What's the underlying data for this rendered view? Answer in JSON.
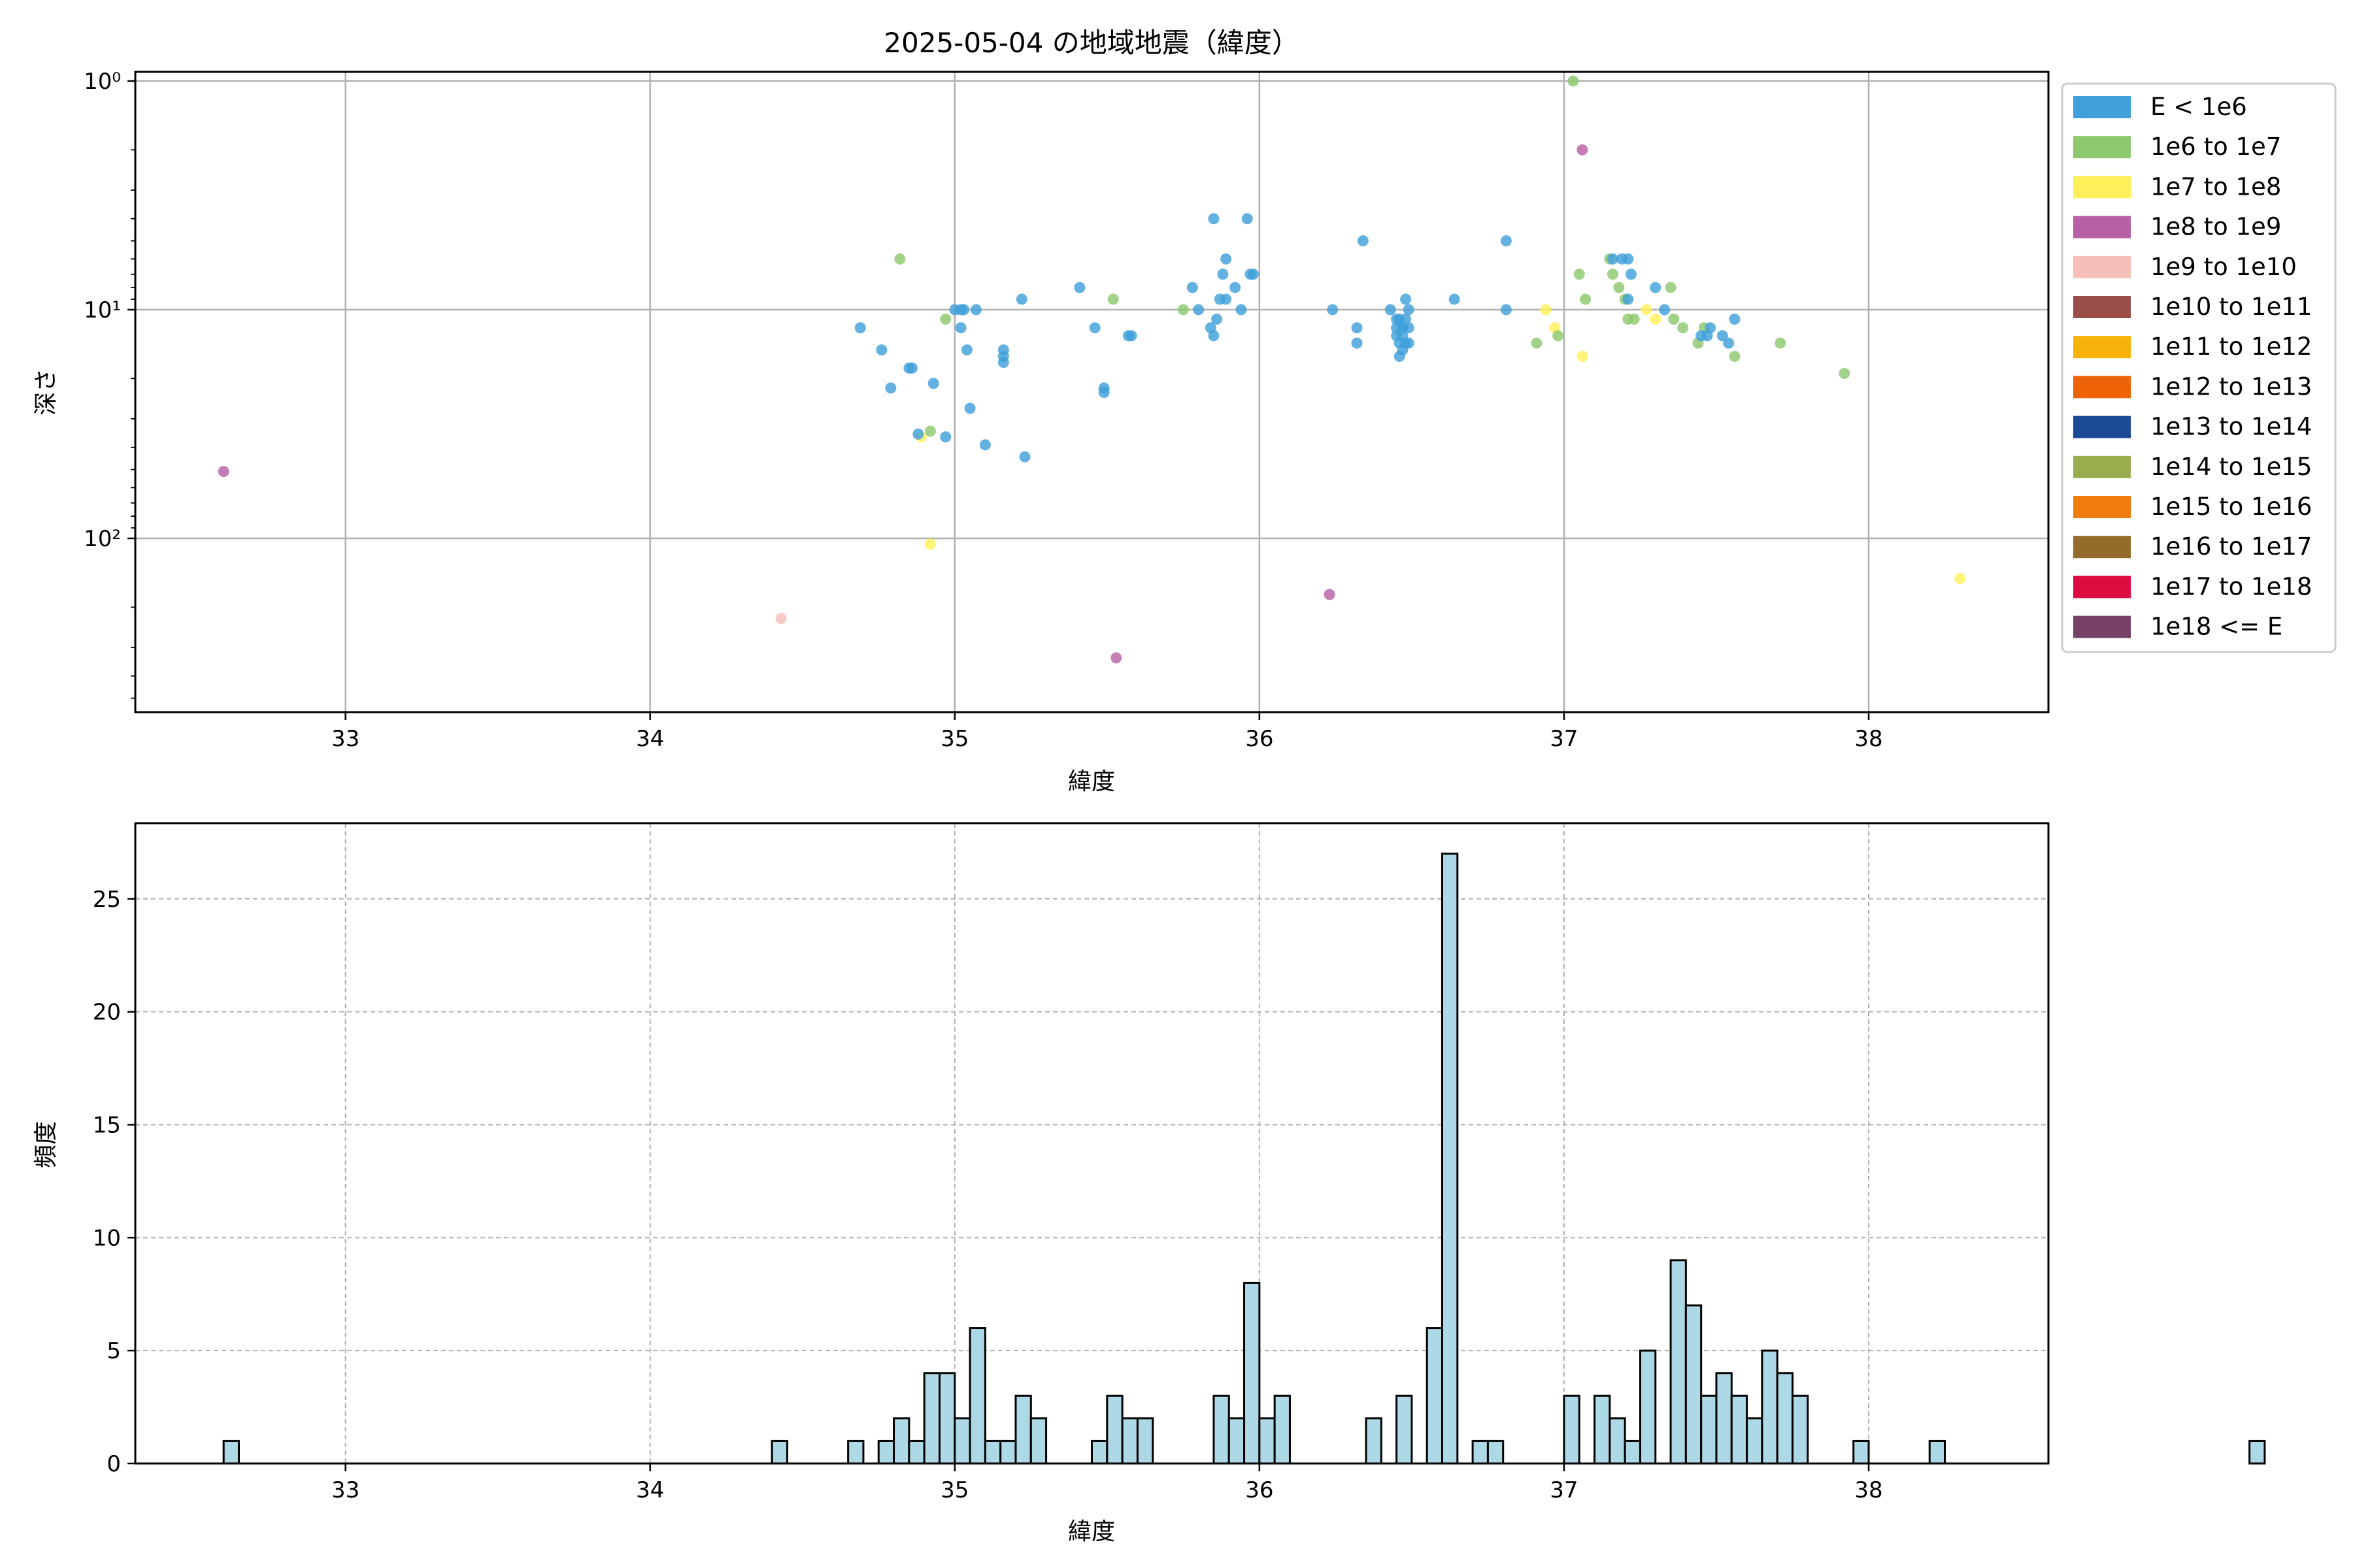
{
  "chart_data": [
    {
      "type": "scatter",
      "title": "2025-05-04 の地域地震（緯度）",
      "xlabel": "緯度",
      "ylabel": "深さ",
      "xlim": [
        32.31,
        38.59
      ],
      "ylim_log": [
        -0.04,
        2.76
      ],
      "yscale": "log (inverted)",
      "x_ticks": [
        "33",
        "34",
        "35",
        "36",
        "37",
        "38"
      ],
      "y_ticks": [
        {
          "value": 1,
          "label": "10⁰"
        },
        {
          "value": 10,
          "label": "10¹"
        },
        {
          "value": 100,
          "label": "10²"
        }
      ],
      "grid": true,
      "legend_position": "outside right",
      "legend": [
        {
          "label": "E < 1e6",
          "color": "#3fa0db"
        },
        {
          "label": "1e6 to 1e7",
          "color": "#8dc86e"
        },
        {
          "label": "1e7 to 1e8",
          "color": "#fff05a"
        },
        {
          "label": "1e8 to 1e9",
          "color": "#b860a6"
        },
        {
          "label": "1e9 to 1e10",
          "color": "#f6c0b8"
        },
        {
          "label": "1e10 to 1e11",
          "color": "#9a4e4c"
        },
        {
          "label": "1e11 to 1e12",
          "color": "#f7b20a"
        },
        {
          "label": "1e12 to 1e13",
          "color": "#ee6208"
        },
        {
          "label": "1e13 to 1e14",
          "color": "#1b4a96"
        },
        {
          "label": "1e14 to 1e15",
          "color": "#9aad4e"
        },
        {
          "label": "1e15 to 1e16",
          "color": "#f07c0e"
        },
        {
          "label": "1e16 to 1e17",
          "color": "#936b2a"
        },
        {
          "label": "1e17 to 1e18",
          "color": "#dc0b40"
        },
        {
          "label": "1e18 <= E",
          "color": "#774068"
        }
      ],
      "points": [
        {
          "x": 32.6,
          "y": 51,
          "c": 3
        },
        {
          "x": 34.43,
          "y": 224,
          "c": 4
        },
        {
          "x": 35.53,
          "y": 333,
          "c": 3
        },
        {
          "x": 36.23,
          "y": 176,
          "c": 3
        },
        {
          "x": 37.06,
          "y": 2,
          "c": 3
        },
        {
          "x": 38.3,
          "y": 150,
          "c": 2
        },
        {
          "x": 34.92,
          "y": 106,
          "c": 2
        },
        {
          "x": 34.89,
          "y": 36,
          "c": 2
        },
        {
          "x": 36.94,
          "y": 10,
          "c": 2
        },
        {
          "x": 36.97,
          "y": 12,
          "c": 2
        },
        {
          "x": 37.06,
          "y": 16,
          "c": 2
        },
        {
          "x": 37.27,
          "y": 10,
          "c": 2
        },
        {
          "x": 37.3,
          "y": 11,
          "c": 2
        },
        {
          "x": 34.82,
          "y": 6,
          "c": 1
        },
        {
          "x": 34.92,
          "y": 34,
          "c": 1
        },
        {
          "x": 34.97,
          "y": 11,
          "c": 1
        },
        {
          "x": 35.52,
          "y": 9,
          "c": 1
        },
        {
          "x": 35.75,
          "y": 10,
          "c": 1
        },
        {
          "x": 36.91,
          "y": 14,
          "c": 1
        },
        {
          "x": 36.98,
          "y": 13,
          "c": 1
        },
        {
          "x": 37.03,
          "y": 1,
          "c": 1
        },
        {
          "x": 37.05,
          "y": 7,
          "c": 1
        },
        {
          "x": 37.07,
          "y": 9,
          "c": 1
        },
        {
          "x": 37.15,
          "y": 6,
          "c": 1
        },
        {
          "x": 37.16,
          "y": 7,
          "c": 1
        },
        {
          "x": 37.18,
          "y": 8,
          "c": 1
        },
        {
          "x": 37.2,
          "y": 9,
          "c": 1
        },
        {
          "x": 37.21,
          "y": 11,
          "c": 1
        },
        {
          "x": 37.23,
          "y": 11,
          "c": 1
        },
        {
          "x": 37.35,
          "y": 8,
          "c": 1
        },
        {
          "x": 37.36,
          "y": 11,
          "c": 1
        },
        {
          "x": 37.39,
          "y": 12,
          "c": 1
        },
        {
          "x": 37.44,
          "y": 14,
          "c": 1
        },
        {
          "x": 37.46,
          "y": 12,
          "c": 1
        },
        {
          "x": 37.56,
          "y": 16,
          "c": 1
        },
        {
          "x": 37.71,
          "y": 14,
          "c": 1
        },
        {
          "x": 37.92,
          "y": 19,
          "c": 1
        },
        {
          "x": 34.69,
          "y": 12,
          "c": 0
        },
        {
          "x": 34.76,
          "y": 15,
          "c": 0
        },
        {
          "x": 34.79,
          "y": 22,
          "c": 0
        },
        {
          "x": 34.85,
          "y": 18,
          "c": 0
        },
        {
          "x": 34.86,
          "y": 18,
          "c": 0
        },
        {
          "x": 34.88,
          "y": 35,
          "c": 0
        },
        {
          "x": 34.93,
          "y": 21,
          "c": 0
        },
        {
          "x": 34.97,
          "y": 36,
          "c": 0
        },
        {
          "x": 35.0,
          "y": 10,
          "c": 0
        },
        {
          "x": 35.02,
          "y": 10,
          "c": 0
        },
        {
          "x": 35.03,
          "y": 10,
          "c": 0
        },
        {
          "x": 35.02,
          "y": 12,
          "c": 0
        },
        {
          "x": 35.04,
          "y": 15,
          "c": 0
        },
        {
          "x": 35.05,
          "y": 27,
          "c": 0
        },
        {
          "x": 35.07,
          "y": 10,
          "c": 0
        },
        {
          "x": 35.1,
          "y": 39,
          "c": 0
        },
        {
          "x": 35.16,
          "y": 15,
          "c": 0
        },
        {
          "x": 35.16,
          "y": 16,
          "c": 0
        },
        {
          "x": 35.16,
          "y": 17,
          "c": 0
        },
        {
          "x": 35.22,
          "y": 9,
          "c": 0
        },
        {
          "x": 35.23,
          "y": 44,
          "c": 0
        },
        {
          "x": 35.41,
          "y": 8,
          "c": 0
        },
        {
          "x": 35.46,
          "y": 12,
          "c": 0
        },
        {
          "x": 35.49,
          "y": 22,
          "c": 0
        },
        {
          "x": 35.49,
          "y": 23,
          "c": 0
        },
        {
          "x": 35.57,
          "y": 13,
          "c": 0
        },
        {
          "x": 35.58,
          "y": 13,
          "c": 0
        },
        {
          "x": 35.78,
          "y": 8,
          "c": 0
        },
        {
          "x": 35.8,
          "y": 10,
          "c": 0
        },
        {
          "x": 35.84,
          "y": 12,
          "c": 0
        },
        {
          "x": 35.85,
          "y": 13,
          "c": 0
        },
        {
          "x": 35.85,
          "y": 4,
          "c": 0
        },
        {
          "x": 35.86,
          "y": 11,
          "c": 0
        },
        {
          "x": 35.87,
          "y": 9,
          "c": 0
        },
        {
          "x": 35.88,
          "y": 7,
          "c": 0
        },
        {
          "x": 35.89,
          "y": 9,
          "c": 0
        },
        {
          "x": 35.89,
          "y": 6,
          "c": 0
        },
        {
          "x": 35.92,
          "y": 8,
          "c": 0
        },
        {
          "x": 35.94,
          "y": 10,
          "c": 0
        },
        {
          "x": 35.96,
          "y": 4,
          "c": 0
        },
        {
          "x": 35.97,
          "y": 7,
          "c": 0
        },
        {
          "x": 35.98,
          "y": 7,
          "c": 0
        },
        {
          "x": 36.24,
          "y": 10,
          "c": 0
        },
        {
          "x": 36.32,
          "y": 12,
          "c": 0
        },
        {
          "x": 36.32,
          "y": 14,
          "c": 0
        },
        {
          "x": 36.34,
          "y": 5,
          "c": 0
        },
        {
          "x": 36.43,
          "y": 10,
          "c": 0
        },
        {
          "x": 36.45,
          "y": 11,
          "c": 0
        },
        {
          "x": 36.45,
          "y": 12,
          "c": 0
        },
        {
          "x": 36.45,
          "y": 13,
          "c": 0
        },
        {
          "x": 36.46,
          "y": 14,
          "c": 0
        },
        {
          "x": 36.46,
          "y": 16,
          "c": 0
        },
        {
          "x": 36.46,
          "y": 11,
          "c": 0
        },
        {
          "x": 36.47,
          "y": 12,
          "c": 0
        },
        {
          "x": 36.47,
          "y": 13,
          "c": 0
        },
        {
          "x": 36.47,
          "y": 15,
          "c": 0
        },
        {
          "x": 36.47,
          "y": 12,
          "c": 0
        },
        {
          "x": 36.48,
          "y": 11,
          "c": 0
        },
        {
          "x": 36.48,
          "y": 14,
          "c": 0
        },
        {
          "x": 36.48,
          "y": 9,
          "c": 0
        },
        {
          "x": 36.49,
          "y": 10,
          "c": 0
        },
        {
          "x": 36.49,
          "y": 12,
          "c": 0
        },
        {
          "x": 36.49,
          "y": 14,
          "c": 0
        },
        {
          "x": 36.64,
          "y": 9,
          "c": 0
        },
        {
          "x": 36.81,
          "y": 5,
          "c": 0
        },
        {
          "x": 36.81,
          "y": 10,
          "c": 0
        },
        {
          "x": 37.16,
          "y": 6,
          "c": 0
        },
        {
          "x": 37.19,
          "y": 6,
          "c": 0
        },
        {
          "x": 37.21,
          "y": 6,
          "c": 0
        },
        {
          "x": 37.22,
          "y": 7,
          "c": 0
        },
        {
          "x": 37.21,
          "y": 9,
          "c": 0
        },
        {
          "x": 37.3,
          "y": 8,
          "c": 0
        },
        {
          "x": 37.33,
          "y": 10,
          "c": 0
        },
        {
          "x": 37.45,
          "y": 13,
          "c": 0
        },
        {
          "x": 37.47,
          "y": 13,
          "c": 0
        },
        {
          "x": 37.48,
          "y": 12,
          "c": 0
        },
        {
          "x": 37.52,
          "y": 13,
          "c": 0
        },
        {
          "x": 37.54,
          "y": 14,
          "c": 0
        },
        {
          "x": 37.56,
          "y": 11,
          "c": 0
        }
      ]
    },
    {
      "type": "bar",
      "title": "",
      "xlabel": "緯度",
      "ylabel": "頻度",
      "xlim": [
        32.31,
        38.59
      ],
      "ylim": [
        0,
        28.35
      ],
      "y_ticks": [
        "0",
        "5",
        "10",
        "15",
        "20",
        "25"
      ],
      "x_ticks": [
        "33",
        "34",
        "35",
        "36",
        "37",
        "38"
      ],
      "grid": "dashed",
      "bar_color": "#add8e6",
      "bin_start": 32.6,
      "bin_width": 0.05,
      "counts": [
        1,
        0,
        0,
        0,
        0,
        0,
        0,
        0,
        0,
        0,
        0,
        0,
        0,
        0,
        0,
        0,
        0,
        0,
        0,
        0,
        0,
        0,
        0,
        0,
        0,
        0,
        0,
        0,
        0,
        0,
        0,
        0,
        0,
        0,
        0,
        0,
        1,
        0,
        0,
        0,
        0,
        1,
        0,
        1,
        2,
        1,
        4,
        4,
        2,
        6,
        1,
        1,
        3,
        2,
        0,
        0,
        0,
        1,
        3,
        2,
        2,
        0,
        0,
        0,
        0,
        3,
        2,
        8,
        2,
        3,
        0,
        0,
        0,
        0,
        0,
        2,
        0,
        3,
        0,
        6,
        27,
        0,
        1,
        1,
        0,
        0,
        0,
        0,
        3,
        0,
        3,
        2,
        1,
        5,
        0,
        9,
        7,
        3,
        4,
        3,
        2,
        5,
        4,
        3,
        0,
        0,
        0,
        1,
        0,
        0,
        0,
        0,
        1,
        0,
        0,
        0,
        0,
        0,
        0,
        0,
        0,
        0,
        0,
        0,
        0,
        0,
        0,
        0,
        0,
        0,
        0,
        0,
        0,
        1
      ]
    }
  ]
}
